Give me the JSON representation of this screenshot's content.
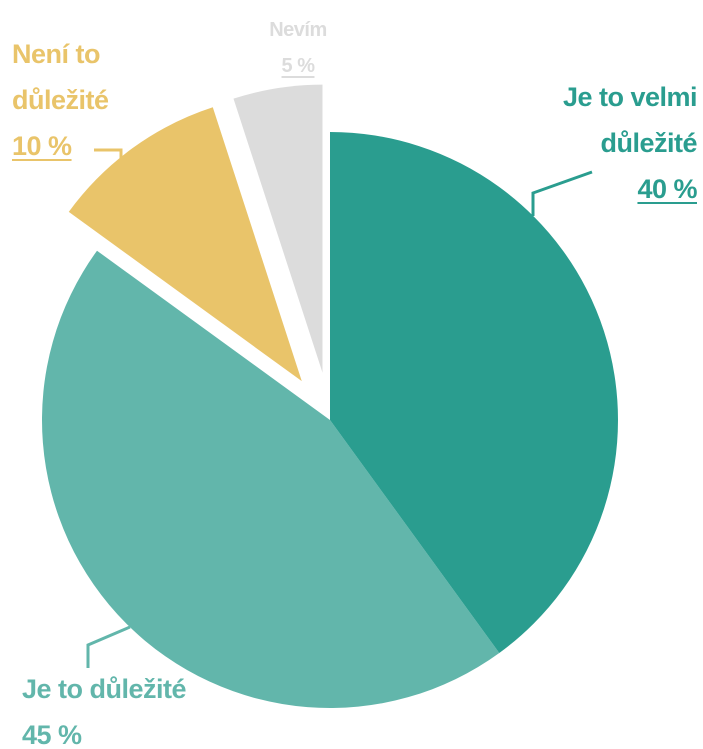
{
  "chart_data": {
    "type": "pie",
    "categories": [
      "Je to velmi důležité",
      "Je to důležité",
      "Není to důležité",
      "Nevím"
    ],
    "values": [
      40,
      45,
      10,
      5
    ],
    "value_labels": [
      "40 %",
      "45 %",
      "10 %",
      "5 %"
    ],
    "colors": [
      "#2a9d8f",
      "#62b6ab",
      "#e9c46a",
      "#dcdcdc"
    ],
    "exploded": [
      false,
      false,
      true,
      true
    ]
  }
}
